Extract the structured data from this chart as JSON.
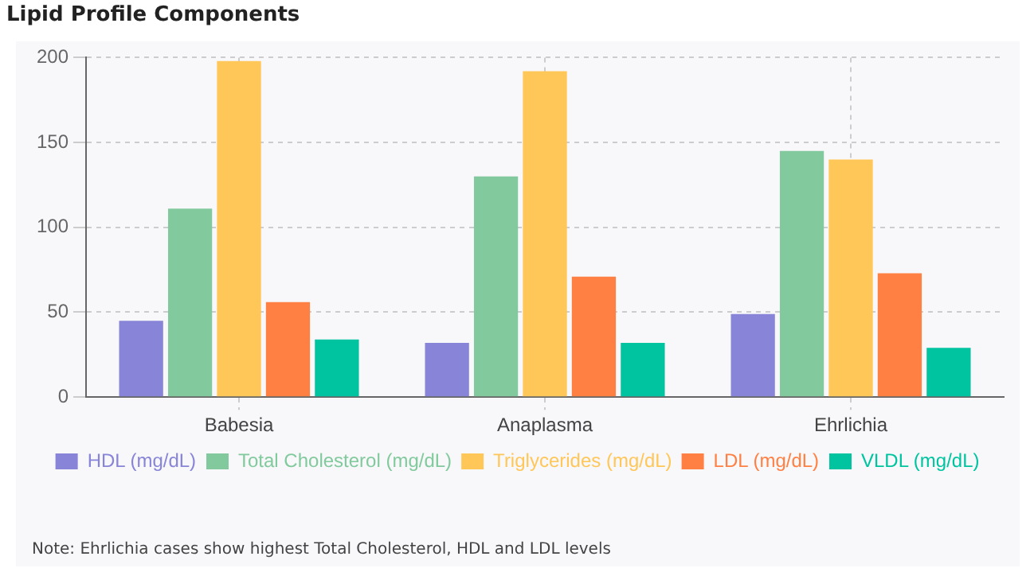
{
  "chart_data": {
    "type": "bar",
    "title": "Lipid Profile Components",
    "categories": [
      "Babesia",
      "Anaplasma",
      "Ehrlichia"
    ],
    "series": [
      {
        "name": "HDL (mg/dL)",
        "color": "#8884d8",
        "values": [
          45,
          32,
          49
        ]
      },
      {
        "name": "Total Cholesterol (mg/dL)",
        "color": "#82ca9d",
        "values": [
          111,
          130,
          145
        ]
      },
      {
        "name": "Triglycerides (mg/dL)",
        "color": "#ffc658",
        "values": [
          198,
          192,
          140
        ]
      },
      {
        "name": "LDL (mg/dL)",
        "color": "#ff8042",
        "values": [
          56,
          71,
          73
        ]
      },
      {
        "name": "VLDL (mg/dL)",
        "color": "#00c49f",
        "values": [
          34,
          32,
          29
        ]
      }
    ],
    "ylim": [
      0,
      200
    ],
    "yticks": [
      0,
      50,
      100,
      150,
      200
    ],
    "grid": true,
    "legend": "bottom",
    "annotations": [
      "Note: Ehrlichia cases show highest Total Cholesterol, HDL and LDL levels"
    ]
  }
}
